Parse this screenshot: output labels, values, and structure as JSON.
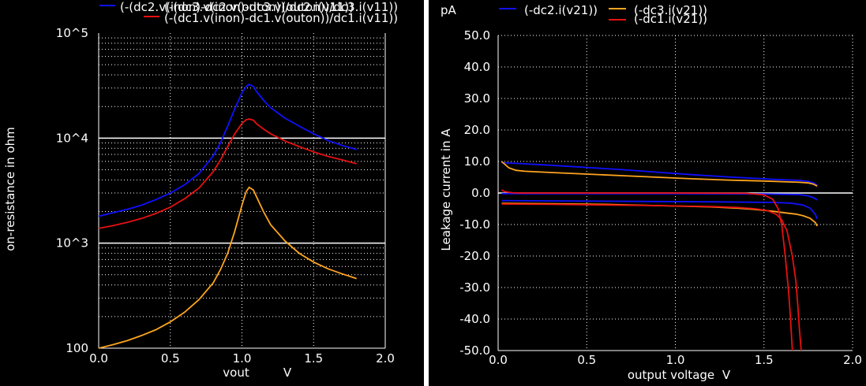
{
  "colors": {
    "background": "#000000",
    "foreground": "#ffffff",
    "divider": "#ffffff",
    "blue": "#1010ff",
    "orange": "#ffa51f",
    "red": "#e81010"
  },
  "chart_data": [
    {
      "type": "line",
      "ylabel": "on-resistance in ohm",
      "xlabel": "vout",
      "xunit": "V",
      "xlim": [
        0,
        2.0
      ],
      "ylim": [
        100,
        100000
      ],
      "yscale": "log",
      "xticks": [
        "0.0",
        "0.5",
        "1.0",
        "1.5",
        "2.0"
      ],
      "yticks": [
        "100",
        "10^3",
        "10^4",
        "10^5"
      ],
      "grid": true,
      "legend_position": "top",
      "legend": {
        "row1": "(-(dc2.v(inon)-dc2.v(outon))/dc2.i(v11))",
        "row1_overlap": "(-(dc3.v(inon)-dc3.v(outon))/dc3.i(v11))",
        "row2": "(-(dc1.v(inon)-dc1.v(outon))/dc1.i(v11))"
      },
      "series": [
        {
          "name": "(-(dc2.v(inon)-dc2.v(outon))/dc2.i(v11))",
          "color": "blue",
          "x": [
            0.0,
            0.1,
            0.2,
            0.3,
            0.4,
            0.5,
            0.6,
            0.7,
            0.8,
            0.85,
            0.9,
            0.95,
            1.0,
            1.03,
            1.05,
            1.08,
            1.1,
            1.15,
            1.2,
            1.3,
            1.4,
            1.5,
            1.6,
            1.7,
            1.8
          ],
          "y": [
            1800,
            1950,
            2100,
            2300,
            2600,
            3000,
            3600,
            4600,
            6800,
            9000,
            13000,
            19000,
            27000,
            31000,
            32500,
            31000,
            28000,
            23000,
            19500,
            15500,
            13000,
            11000,
            9500,
            8500,
            7800
          ]
        },
        {
          "name": "(-(dc3.v(inon)-dc3.v(outon))/dc3.i(v11))",
          "color": "orange",
          "x": [
            0.0,
            0.1,
            0.2,
            0.3,
            0.4,
            0.5,
            0.6,
            0.7,
            0.8,
            0.85,
            0.9,
            0.95,
            1.0,
            1.03,
            1.05,
            1.08,
            1.1,
            1.15,
            1.2,
            1.3,
            1.4,
            1.5,
            1.6,
            1.7,
            1.8
          ],
          "y": [
            100,
            108,
            118,
            132,
            150,
            178,
            220,
            290,
            420,
            560,
            800,
            1300,
            2300,
            3100,
            3400,
            3200,
            2800,
            2000,
            1500,
            1050,
            800,
            660,
            570,
            510,
            460
          ]
        },
        {
          "name": "(-(dc1.v(inon)-dc1.v(outon))/dc1.i(v11))",
          "color": "red",
          "x": [
            0.0,
            0.1,
            0.2,
            0.3,
            0.4,
            0.5,
            0.6,
            0.7,
            0.8,
            0.85,
            0.9,
            0.95,
            1.0,
            1.03,
            1.05,
            1.08,
            1.1,
            1.15,
            1.2,
            1.3,
            1.4,
            1.5,
            1.6,
            1.7,
            1.8
          ],
          "y": [
            1380,
            1470,
            1580,
            1720,
            1920,
            2200,
            2650,
            3350,
            4800,
            6200,
            8300,
            11000,
            13800,
            15000,
            15200,
            14800,
            13800,
            12200,
            11000,
            9400,
            8300,
            7400,
            6700,
            6200,
            5700
          ]
        }
      ]
    },
    {
      "type": "line",
      "ylabel": "Leakage current in A",
      "yunit": "pA",
      "xlabel": "output voltage",
      "xunit": "V",
      "xlim": [
        0,
        2.0
      ],
      "ylim": [
        -50,
        50
      ],
      "xticks": [
        "0.0",
        "0.5",
        "1.0",
        "1.5",
        "2.0"
      ],
      "yticks": [
        "50.0",
        "40.0",
        "30.0",
        "20.0",
        "10.0",
        "0.0",
        "-10.0",
        "-20.0",
        "-30.0",
        "-40.0",
        "-50.0"
      ],
      "grid": true,
      "legend_position": "top",
      "series": [
        {
          "name": "(-dc2.i(v21))",
          "color": "blue",
          "traces": [
            {
              "x": [
                0.02,
                0.1,
                0.3,
                0.5,
                0.7,
                0.9,
                1.1,
                1.3,
                1.5,
                1.6,
                1.7,
                1.75,
                1.78,
                1.8
              ],
              "y": [
                9.6,
                9.4,
                8.8,
                8.1,
                7.4,
                6.6,
                5.8,
                5.1,
                4.5,
                4.2,
                4.0,
                3.7,
                3.2,
                2.5
              ]
            },
            {
              "x": [
                0.02,
                0.2,
                0.5,
                1.0,
                1.5,
                1.7,
                1.75,
                1.78,
                1.8
              ],
              "y": [
                -0.2,
                -0.2,
                -0.2,
                -0.2,
                -0.3,
                -0.5,
                -0.9,
                -1.5,
                -2.2
              ]
            },
            {
              "x": [
                0.02,
                0.3,
                0.6,
                0.9,
                1.2,
                1.4,
                1.55,
                1.65,
                1.72,
                1.76,
                1.79,
                1.8
              ],
              "y": [
                -2.4,
                -2.5,
                -2.6,
                -2.7,
                -2.8,
                -2.9,
                -3.0,
                -3.2,
                -3.8,
                -4.8,
                -6.8,
                -8.2
              ]
            }
          ]
        },
        {
          "name": "(-dc3.i(v21))",
          "color": "orange",
          "traces": [
            {
              "x": [
                0.02,
                0.04,
                0.06,
                0.1,
                0.15,
                0.3,
                0.5,
                0.7,
                0.9,
                1.1,
                1.3,
                1.5,
                1.6,
                1.7,
                1.75,
                1.78,
                1.8
              ],
              "y": [
                10.0,
                9.0,
                8.0,
                7.2,
                6.9,
                6.5,
                6.0,
                5.5,
                5.0,
                4.5,
                4.1,
                3.8,
                3.6,
                3.4,
                3.2,
                2.8,
                2.2
              ]
            },
            {
              "x": [
                0.02,
                0.3,
                0.6,
                0.9,
                1.2,
                1.35,
                1.45,
                1.55,
                1.62,
                1.68,
                1.72,
                1.76,
                1.79,
                1.8
              ],
              "y": [
                -3.3,
                -3.4,
                -3.6,
                -4.0,
                -4.4,
                -4.8,
                -5.2,
                -5.8,
                -6.3,
                -6.7,
                -7.2,
                -8.0,
                -9.4,
                -10.5
              ]
            }
          ]
        },
        {
          "name": "(-dc1.i(v21))",
          "color": "red",
          "traces": [
            {
              "x": [
                0.02,
                0.03,
                0.05,
                0.08,
                0.12,
                0.2,
                0.6,
                1.0,
                1.4,
                1.5,
                1.55,
                1.58,
                1.6,
                1.62,
                1.64,
                1.65,
                1.66
              ],
              "y": [
                1.0,
                0.6,
                0.3,
                0.1,
                0.0,
                0.0,
                0.0,
                0.0,
                -0.1,
                -0.6,
                -2.0,
                -5.0,
                -10.0,
                -20.0,
                -32.0,
                -40.0,
                -50.0
              ]
            },
            {
              "x": [
                0.02,
                0.3,
                0.6,
                0.9,
                1.2,
                1.35,
                1.45,
                1.52,
                1.57,
                1.6,
                1.63,
                1.66,
                1.68,
                1.69,
                1.7,
                1.71
              ],
              "y": [
                -3.5,
                -3.6,
                -3.8,
                -4.0,
                -4.3,
                -4.6,
                -5.0,
                -5.6,
                -6.8,
                -8.5,
                -12.0,
                -20.0,
                -28.0,
                -35.0,
                -43.0,
                -50.0
              ]
            }
          ]
        }
      ]
    }
  ]
}
